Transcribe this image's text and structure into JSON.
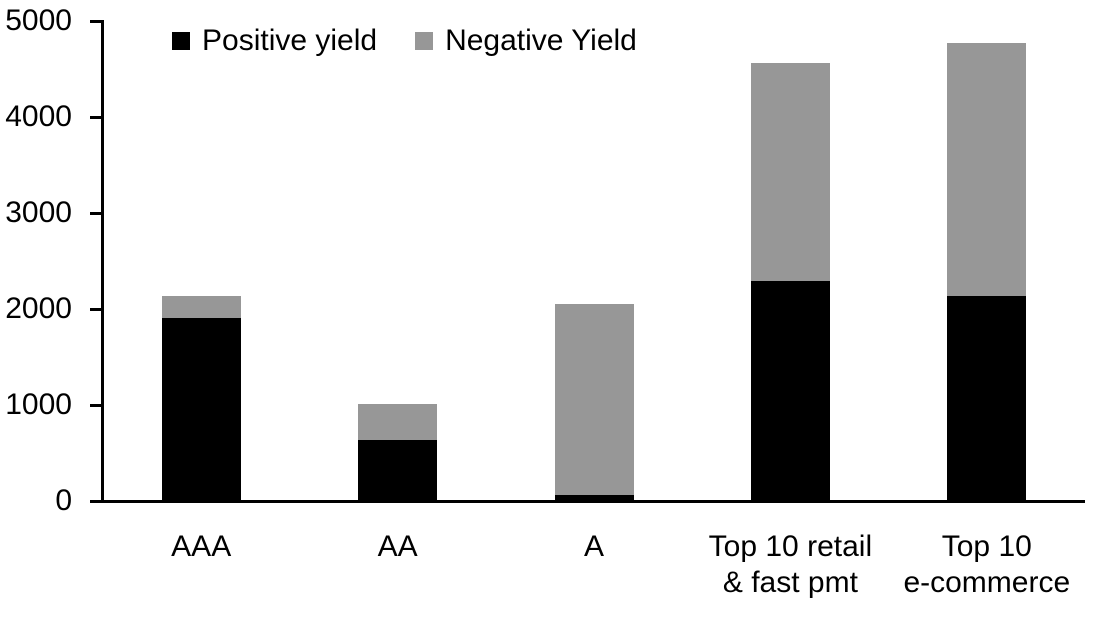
{
  "chart_data": {
    "type": "bar",
    "stacked": true,
    "title": "",
    "xlabel": "",
    "ylabel": "",
    "categories": [
      "AAA",
      "AA",
      "A",
      "Top 10 retail\n& fast pmt",
      "Top 10\ne-commerce"
    ],
    "series": [
      {
        "name": "Positive yield",
        "color": "#000000",
        "values": [
          1900,
          620,
          50,
          2280,
          2130
        ]
      },
      {
        "name": "Negative Yield",
        "color": "#979797",
        "values": [
          220,
          380,
          1990,
          2270,
          2630
        ]
      }
    ],
    "totals": [
      2120,
      1000,
      2040,
      4550,
      4760
    ],
    "ylim": [
      0,
      5000
    ],
    "yticks": [
      0,
      1000,
      2000,
      3000,
      4000,
      5000
    ],
    "grid": false,
    "legend_position": "top",
    "axis_color": "#000000",
    "background": "#ffffff"
  }
}
